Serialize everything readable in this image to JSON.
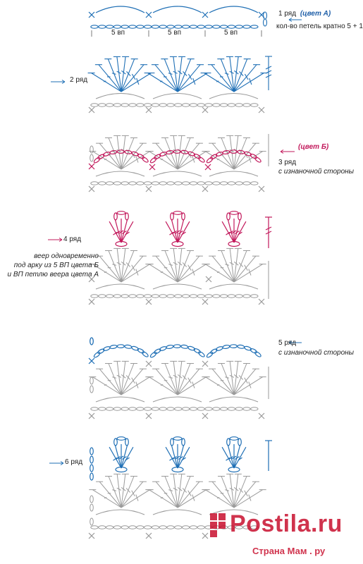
{
  "colors": {
    "blue": "#1f6fb5",
    "magenta": "#c2185b",
    "gray": "#9a9a9a",
    "watermark": "#c8102e"
  },
  "rows": [
    {
      "label": "1 ряд",
      "color_note": "(цвет А)",
      "note": "кол-во петель кратно 5 + 1"
    },
    {
      "label": "2 ряд"
    },
    {
      "label": "3 ряд",
      "color_note": "(цвет Б)",
      "note": "с изнаночной стороны"
    },
    {
      "label": "4 ряд",
      "note_lines": [
        "веер одновременно",
        "под арку из 5 ВП цвета Б",
        "и ВП петлю веера цвета А"
      ]
    },
    {
      "label": "5 ряд",
      "note": "с изнаночной стороны"
    },
    {
      "label": "6 ряд"
    }
  ],
  "chain_label": "5 вп",
  "watermark": {
    "brand": "Postila.ru",
    "sub": "Страна Мам . ру"
  }
}
